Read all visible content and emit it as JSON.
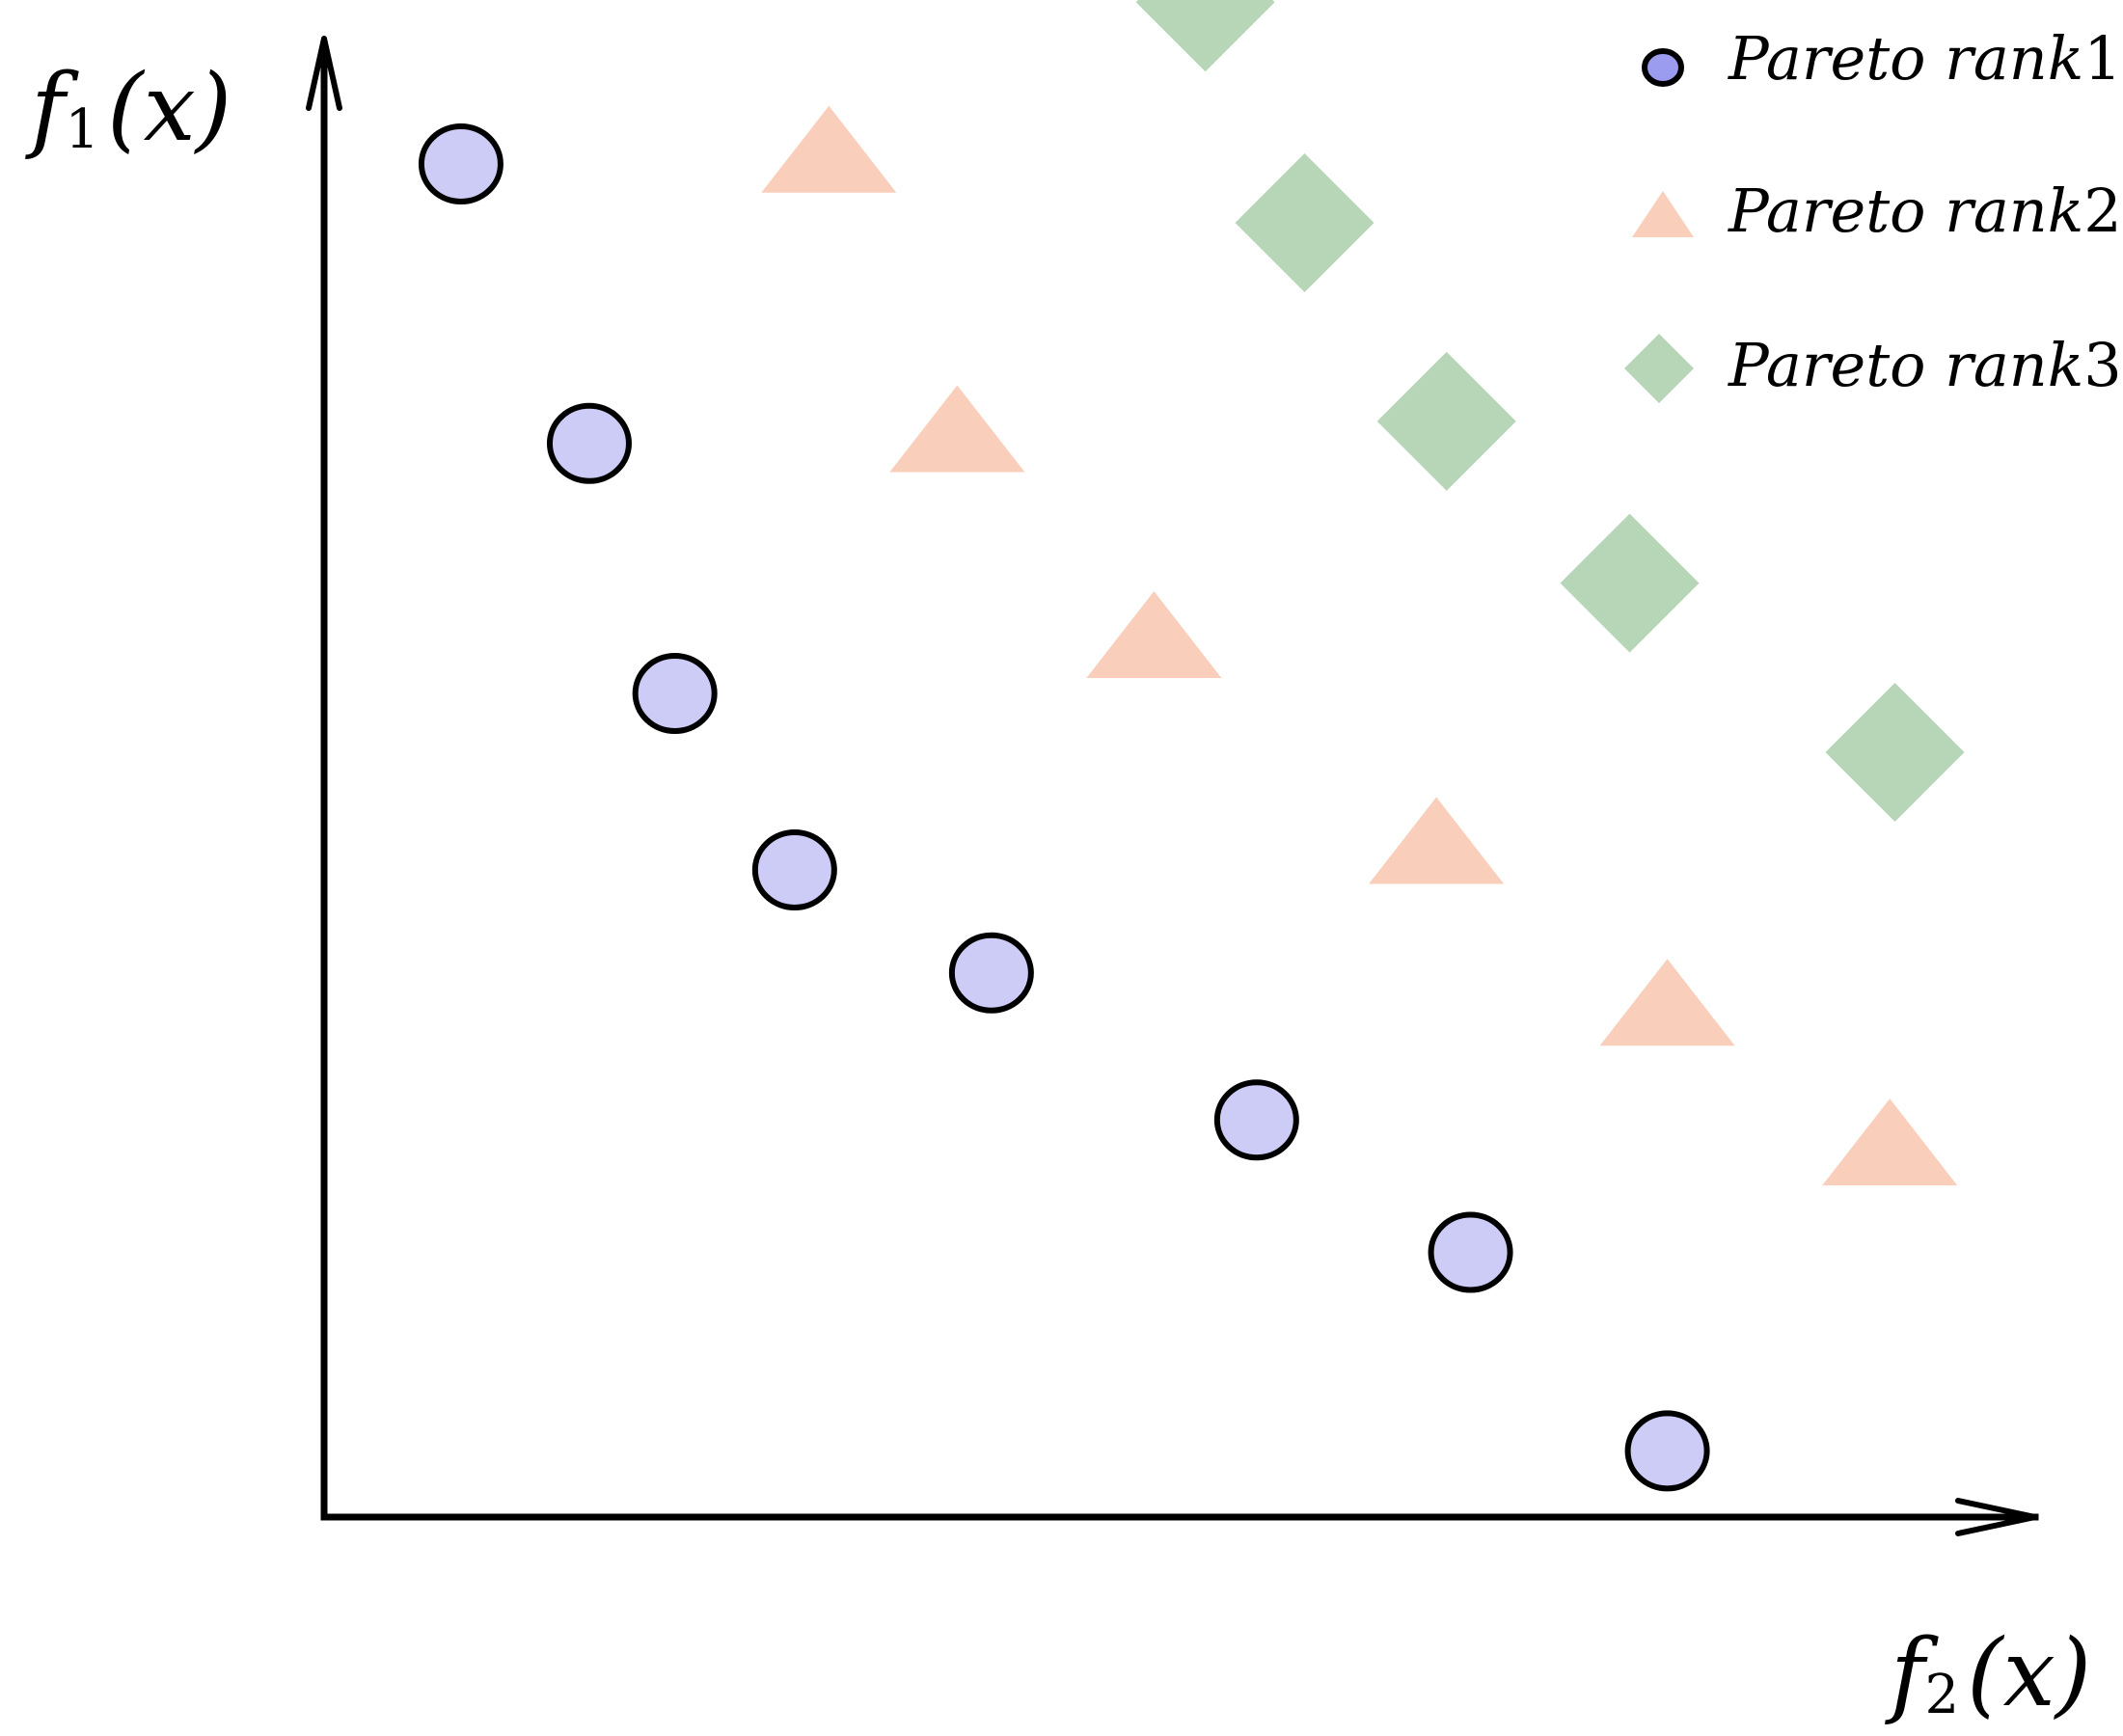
{
  "chart_data": {
    "type": "scatter",
    "title": "",
    "xlabel": {
      "fn": "f",
      "sub": "2",
      "arg": "(x)"
    },
    "ylabel": {
      "fn": "f",
      "sub": "1",
      "arg": "(x)"
    },
    "axes_ticks": "none",
    "grid": false,
    "legend_position": "top-right",
    "series": [
      {
        "name": "Pareto rank1",
        "name_italic": "Pareto rank",
        "name_num": "1",
        "marker": "circle",
        "color": "#ccccf7",
        "edge_color": "#000000",
        "points": [
          [
            0.08,
            0.92
          ],
          [
            0.155,
            0.73
          ],
          [
            0.205,
            0.56
          ],
          [
            0.275,
            0.44
          ],
          [
            0.39,
            0.37
          ],
          [
            0.545,
            0.27
          ],
          [
            0.67,
            0.18
          ],
          [
            0.785,
            0.045
          ]
        ]
      },
      {
        "name": "Pareto rank2",
        "name_italic": "Pareto rank",
        "name_num": "2",
        "marker": "triangle",
        "color": "#f9cebb",
        "edge_color": null,
        "points": [
          [
            0.295,
            0.93
          ],
          [
            0.37,
            0.74
          ],
          [
            0.485,
            0.6
          ],
          [
            0.65,
            0.46
          ],
          [
            0.785,
            0.35
          ],
          [
            0.915,
            0.255
          ]
        ]
      },
      {
        "name": "Pareto rank3",
        "name_italic": "Pareto rank",
        "name_num": "3",
        "marker": "diamond",
        "color": "#b7d5b7",
        "edge_color": null,
        "points": [
          [
            0.515,
            1.03
          ],
          [
            0.573,
            0.88
          ],
          [
            0.656,
            0.745
          ],
          [
            0.763,
            0.635
          ],
          [
            0.918,
            0.52
          ]
        ]
      }
    ]
  }
}
